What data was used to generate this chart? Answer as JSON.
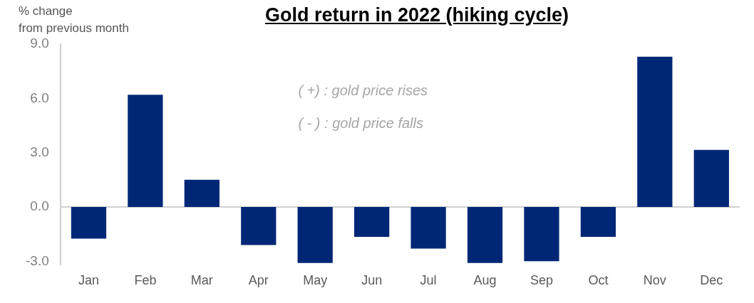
{
  "chart_data": {
    "type": "bar",
    "title": "Gold return in 2022 (hiking cycle)",
    "ylabel": "% change\nfrom previous month",
    "categories": [
      "Jan",
      "Feb",
      "Mar",
      "Apr",
      "May",
      "Jun",
      "Jul",
      "Aug",
      "Sep",
      "Oct",
      "Nov",
      "Dec"
    ],
    "values": [
      -1.75,
      6.2,
      1.5,
      -2.1,
      -3.1,
      -1.65,
      -2.3,
      -3.1,
      -3.0,
      -1.65,
      8.3,
      3.15
    ],
    "color": "#002776",
    "ylim": [
      -3.2,
      9
    ],
    "yticks": [
      {
        "value": -3,
        "label": "-3.0"
      },
      {
        "value": 0,
        "label": "0.0"
      },
      {
        "value": 3,
        "label": "3.0"
      },
      {
        "value": 6,
        "label": "6.0"
      },
      {
        "value": 9,
        "label": "9.0"
      }
    ],
    "annotations": [
      "( +) : gold price rises",
      "( - ) : gold price falls"
    ],
    "ref_lines": [
      {
        "axis": "y",
        "value": 0,
        "color": "#d0d0d0"
      }
    ],
    "grid": false,
    "legend": false
  }
}
